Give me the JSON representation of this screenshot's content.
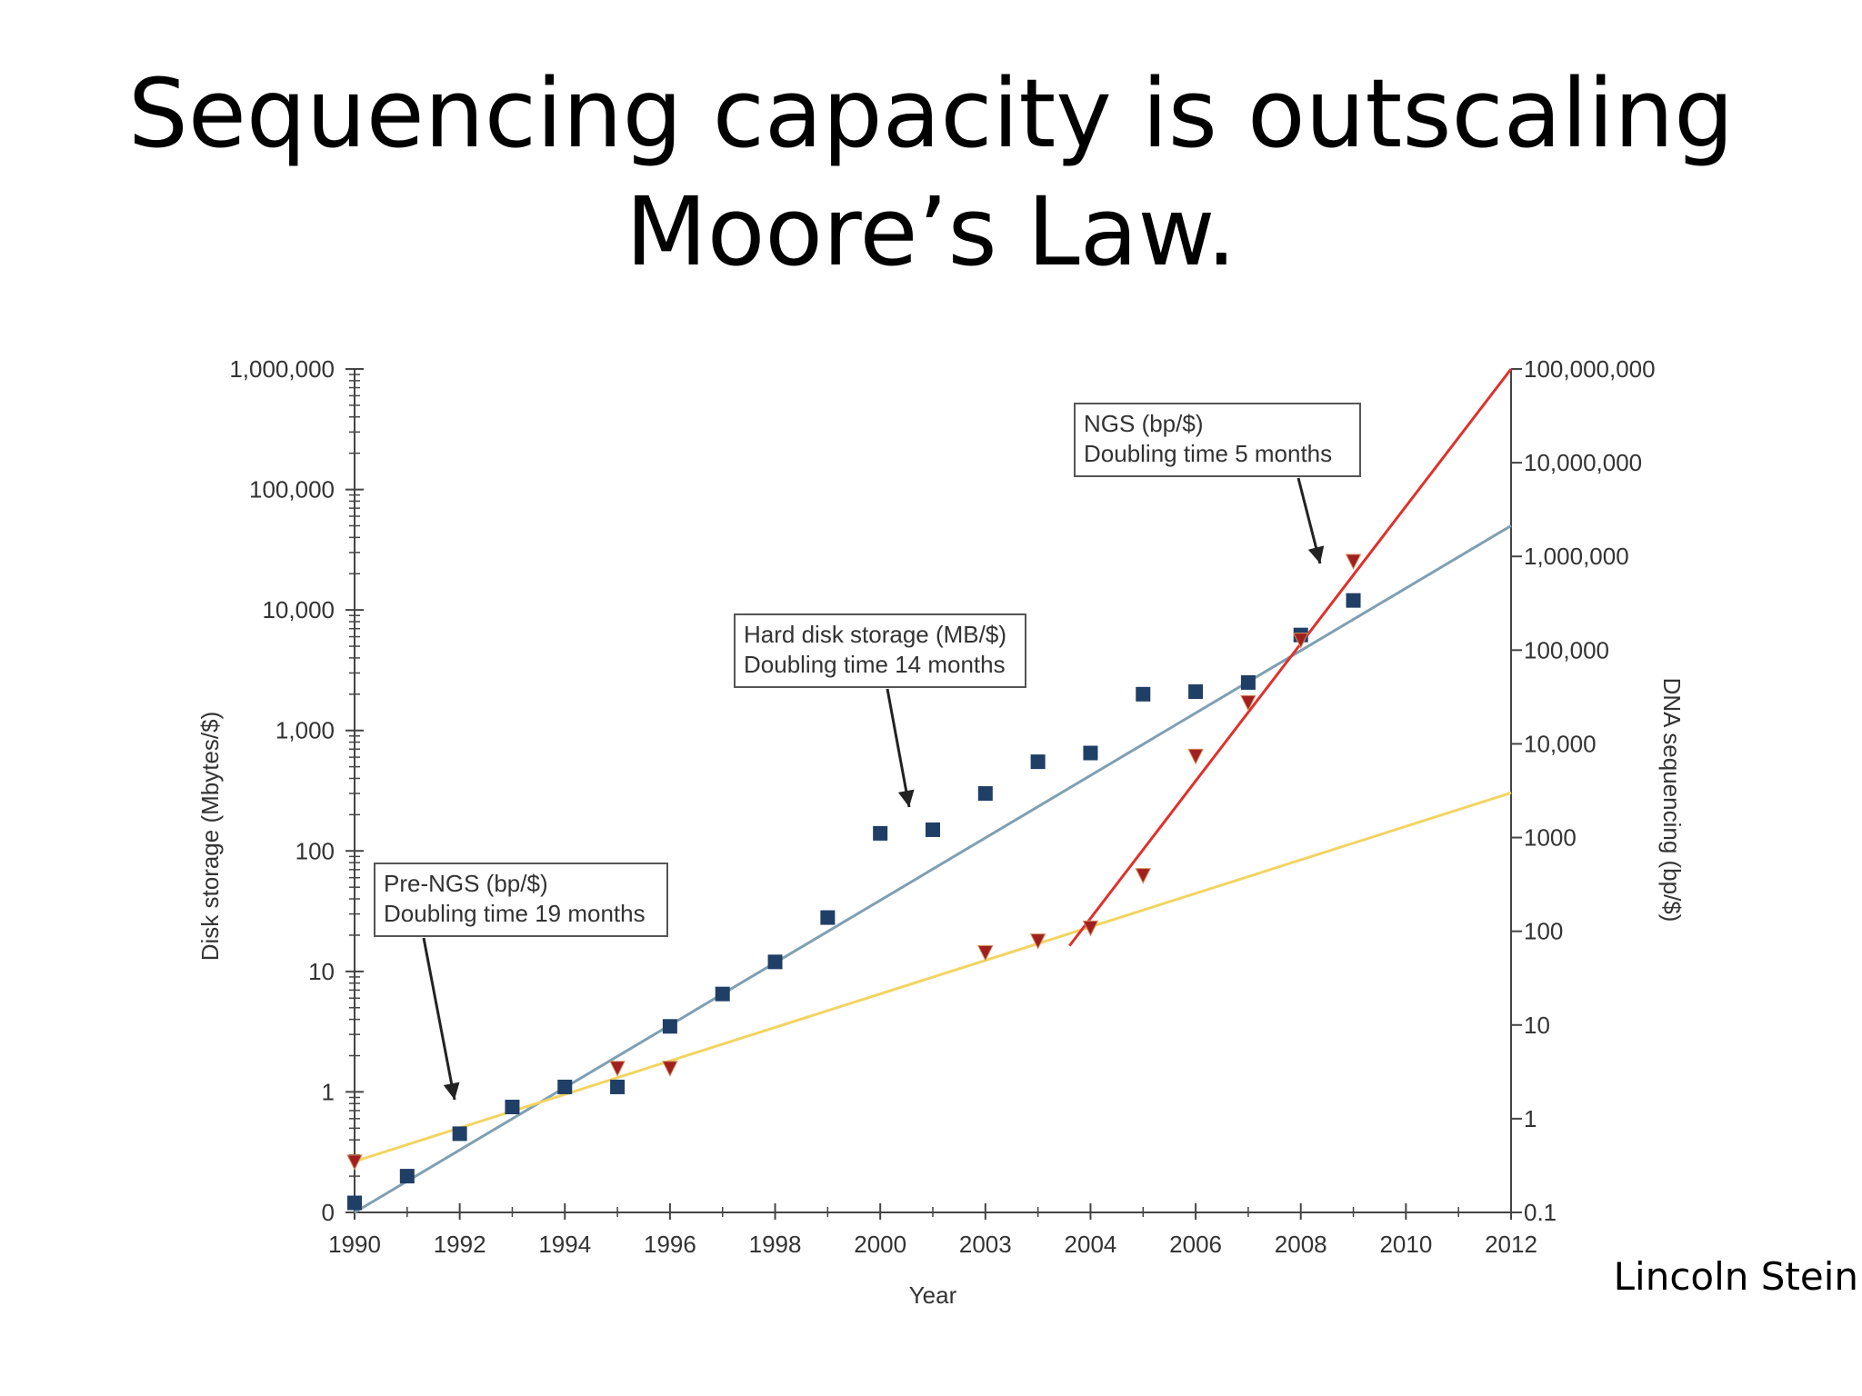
{
  "slide": {
    "title_line1": "Sequencing capacity is outscaling",
    "title_line2": "Moore’s Law.",
    "credit": "Lincoln Stein"
  },
  "chart_data": {
    "type": "scatter",
    "xlabel": "Year",
    "ylabel_left": "Disk storage (Mbytes/$)",
    "ylabel_right": "DNA sequencing (bp/$)",
    "x_ticks": [
      "1990",
      "1992",
      "1994",
      "1996",
      "1998",
      "2000",
      "2003",
      "2004",
      "2006",
      "2008",
      "2010",
      "2012"
    ],
    "y_left_ticks": [
      "0",
      "1",
      "10",
      "100",
      "1,000",
      "10,000",
      "100,000",
      "1,000,000"
    ],
    "y_right_ticks": [
      "0.1",
      "1",
      "10",
      "100",
      "1000",
      "10,000",
      "100,000",
      "1,000,000",
      "10,000,000",
      "100,000,000"
    ],
    "y_left_scale": "log",
    "y_right_scale": "log",
    "series": [
      {
        "name": "Hard disk storage (MB/$)",
        "marker": "square",
        "color": "#1f3f66",
        "points": [
          [
            1990,
            0.12
          ],
          [
            1991,
            0.2
          ],
          [
            1992,
            0.45
          ],
          [
            1993,
            0.75
          ],
          [
            1994,
            1.1
          ],
          [
            1995,
            1.1
          ],
          [
            1996,
            3.5
          ],
          [
            1997,
            6.5
          ],
          [
            1998,
            12
          ],
          [
            1999,
            28
          ],
          [
            2000,
            140
          ],
          [
            2001,
            150
          ],
          [
            2002,
            300
          ],
          [
            2003,
            550
          ],
          [
            2004,
            650
          ],
          [
            2005,
            2000
          ],
          [
            2006,
            2100
          ],
          [
            2007,
            2500
          ],
          [
            2008,
            6200
          ],
          [
            2009,
            12000
          ]
        ]
      },
      {
        "name": "DNA sequencing (bp/$)",
        "marker": "triangle-down",
        "color": "#a02020",
        "points": [
          [
            1990,
            0.35
          ],
          [
            1995,
            3.5
          ],
          [
            1996,
            3.5
          ],
          [
            2002,
            60
          ],
          [
            2003,
            80
          ],
          [
            2004,
            110
          ],
          [
            2005,
            400
          ],
          [
            2006,
            7500
          ],
          [
            2007,
            28000
          ],
          [
            2008,
            130000
          ],
          [
            2009,
            900000
          ]
        ]
      }
    ],
    "trend_lines": [
      {
        "name": "Hard disk storage (MB/$)",
        "axis": "left",
        "color": "#7f9fb3",
        "from": [
          1990,
          0.1
        ],
        "to": [
          2012,
          50000
        ]
      },
      {
        "name": "Pre-NGS (bp/$)",
        "axis": "right",
        "color": "#f2d461",
        "from": [
          1990,
          0.35
        ],
        "to": [
          2012,
          3000
        ]
      },
      {
        "name": "NGS (bp/$)",
        "axis": "right",
        "color": "#e0302b",
        "from": [
          2003.6,
          70
        ],
        "to": [
          2012,
          100000000
        ]
      }
    ],
    "annotations": [
      {
        "line1": "NGS (bp/$)",
        "line2": "Doubling time 5 months"
      },
      {
        "line1": "Hard disk storage (MB/$)",
        "line2": "Doubling time 14 months"
      },
      {
        "line1": "Pre-NGS (bp/$)",
        "line2": "Doubling time 19 months"
      }
    ]
  }
}
